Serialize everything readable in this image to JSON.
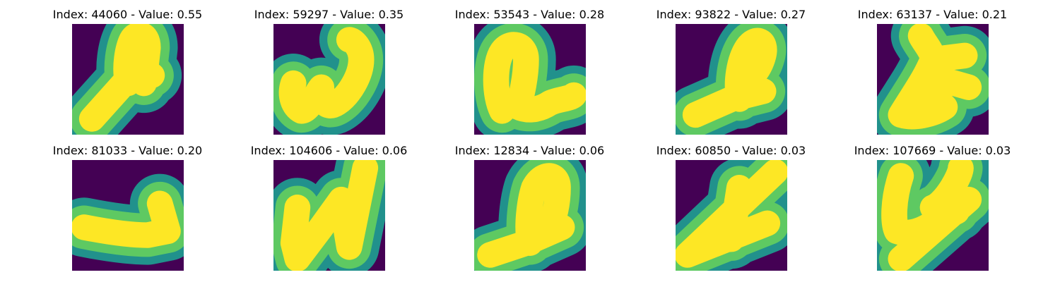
{
  "colors": {
    "background": "#440154",
    "edge": "#21918c",
    "mid": "#5ec962",
    "core": "#fde725"
  },
  "panels": [
    {
      "title": "Index: 44060 - Value: 0.55",
      "index": 44060,
      "value": 0.55
    },
    {
      "title": "Index: 59297 - Value: 0.35",
      "index": 59297,
      "value": 0.35
    },
    {
      "title": "Index: 53543 - Value: 0.28",
      "index": 53543,
      "value": 0.28
    },
    {
      "title": "Index: 93822 - Value: 0.27",
      "index": 93822,
      "value": 0.27
    },
    {
      "title": "Index: 63137 - Value: 0.21",
      "index": 63137,
      "value": 0.21
    },
    {
      "title": "Index: 81033 - Value: 0.20",
      "index": 81033,
      "value": 0.2
    },
    {
      "title": "Index: 104606 - Value: 0.06",
      "index": 104606,
      "value": 0.06
    },
    {
      "title": "Index: 12834 - Value: 0.06",
      "index": 12834,
      "value": 0.06
    },
    {
      "title": "Index: 60850 - Value: 0.03",
      "index": 60850,
      "value": 0.03
    },
    {
      "title": "Index: 107669 - Value: 0.03",
      "index": 107669,
      "value": 0.03
    }
  ]
}
